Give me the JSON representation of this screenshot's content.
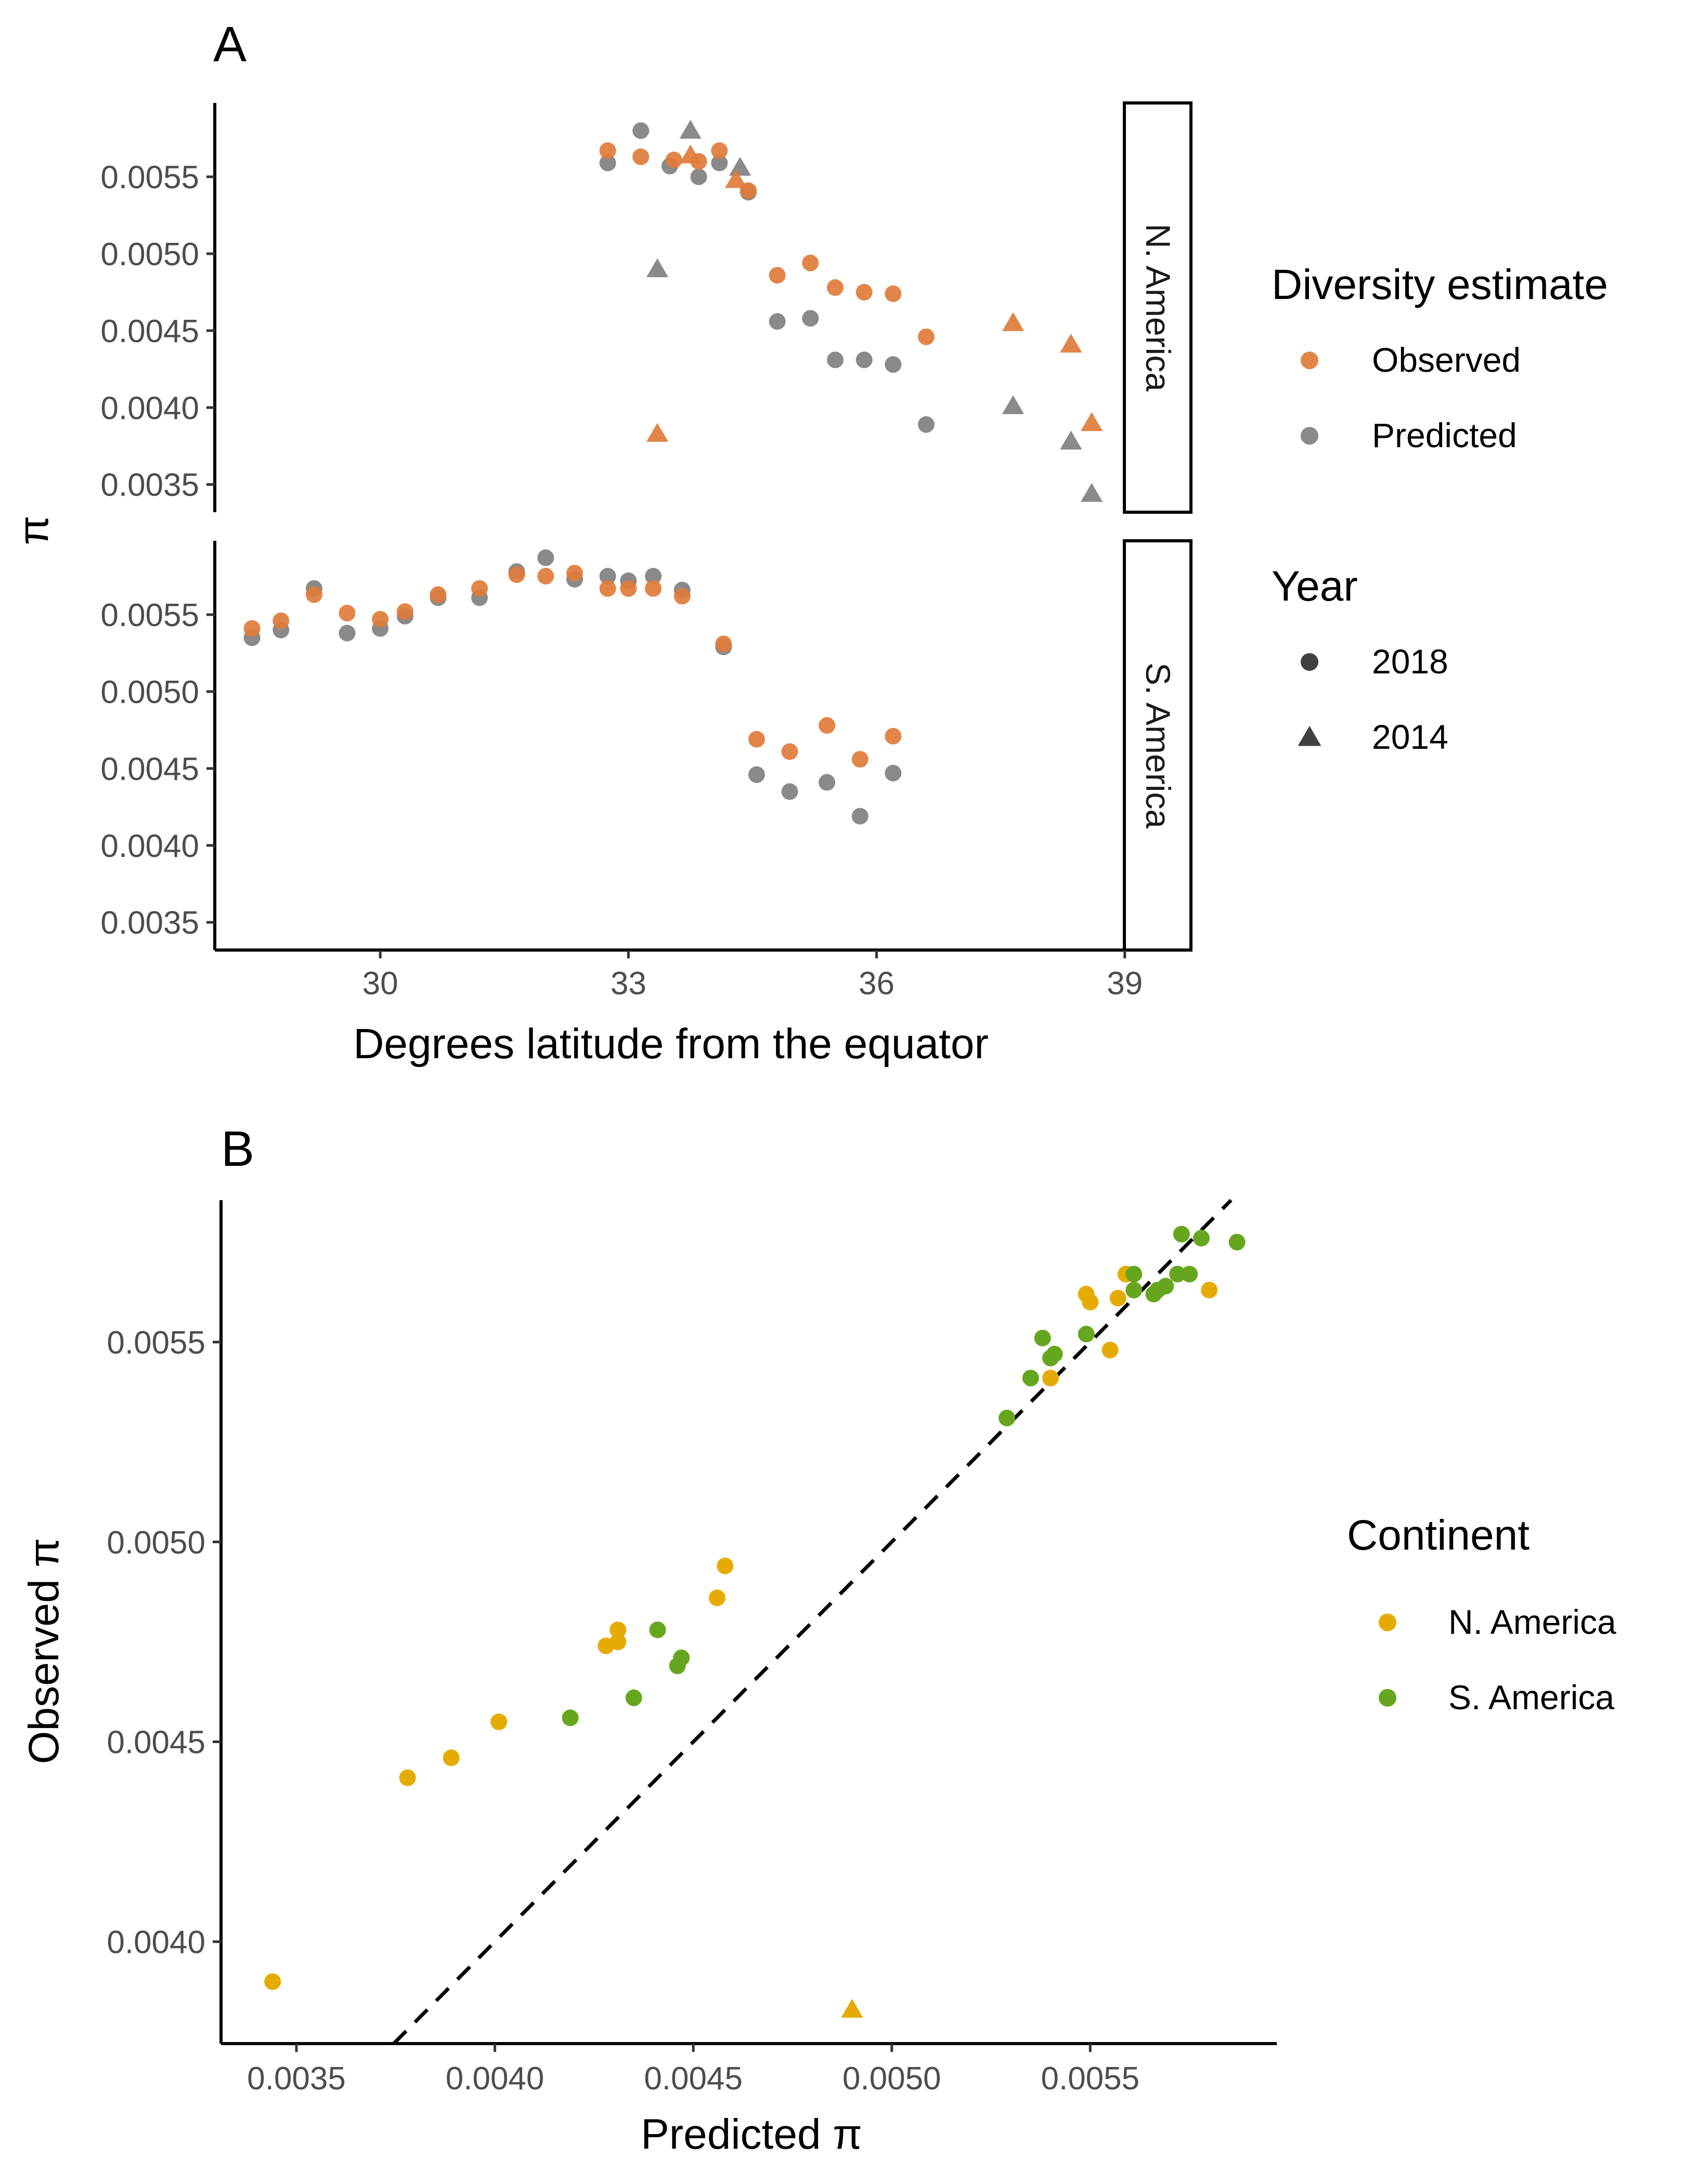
{
  "chart_data": [
    {
      "type": "scatter",
      "panel": "A",
      "xlabel": "Degrees latitude from the equator",
      "ylabel": "π",
      "xlim": [
        28,
        39.8
      ],
      "ylim": [
        0.00332,
        0.00598
      ],
      "xticks": [
        {
          "value": 30,
          "label": "30"
        },
        {
          "value": 33,
          "label": "33"
        },
        {
          "value": 36,
          "label": "36"
        },
        {
          "value": 39,
          "label": "39"
        }
      ],
      "yticks": [
        {
          "value": 0.0035,
          "label": "0.0035"
        },
        {
          "value": 0.004,
          "label": "0.0040"
        },
        {
          "value": 0.0045,
          "label": "0.0045"
        },
        {
          "value": 0.005,
          "label": "0.0050"
        },
        {
          "value": 0.0055,
          "label": "0.0055"
        }
      ],
      "grid": false,
      "legend_position": "right",
      "facets": [
        {
          "label": "N. America",
          "observed_2018": [
            [
              32.75,
              0.00567
            ],
            [
              33.15,
              0.00563
            ],
            [
              33.55,
              0.00561
            ],
            [
              33.85,
              0.0056
            ],
            [
              34.1,
              0.00567
            ],
            [
              34.45,
              0.00541
            ],
            [
              34.8,
              0.00486
            ],
            [
              35.2,
              0.00494
            ],
            [
              35.5,
              0.00478
            ],
            [
              35.85,
              0.00475
            ],
            [
              36.2,
              0.00474
            ],
            [
              36.6,
              0.00446
            ]
          ],
          "observed_2014": [
            [
              33.35,
              0.00383
            ],
            [
              33.75,
              0.00564
            ],
            [
              34.3,
              0.00548
            ],
            [
              37.65,
              0.00455
            ],
            [
              38.35,
              0.00441
            ],
            [
              38.6,
              0.0039
            ]
          ],
          "predicted_2018": [
            [
              32.75,
              0.00559
            ],
            [
              33.15,
              0.0058
            ],
            [
              33.5,
              0.00557
            ],
            [
              33.85,
              0.0055
            ],
            [
              34.1,
              0.00559
            ],
            [
              34.45,
              0.0054
            ],
            [
              34.8,
              0.00456
            ],
            [
              35.2,
              0.00458
            ],
            [
              35.5,
              0.00431
            ],
            [
              35.85,
              0.00431
            ],
            [
              36.2,
              0.00428
            ],
            [
              36.6,
              0.00389
            ]
          ],
          "predicted_2014": [
            [
              33.35,
              0.0049
            ],
            [
              33.75,
              0.0058
            ],
            [
              34.35,
              0.00556
            ],
            [
              37.65,
              0.00401
            ],
            [
              38.35,
              0.00378
            ],
            [
              38.6,
              0.00344
            ]
          ]
        },
        {
          "label": "S. America",
          "observed_2018": [
            [
              28.45,
              0.00541
            ],
            [
              28.8,
              0.00546
            ],
            [
              29.2,
              0.00563
            ],
            [
              29.6,
              0.00551
            ],
            [
              30.0,
              0.00547
            ],
            [
              30.3,
              0.00552
            ],
            [
              30.7,
              0.00563
            ],
            [
              31.2,
              0.00567
            ],
            [
              31.65,
              0.00576
            ],
            [
              32.0,
              0.00575
            ],
            [
              32.35,
              0.00577
            ],
            [
              32.75,
              0.00567
            ],
            [
              33.0,
              0.00567
            ],
            [
              33.3,
              0.00567
            ],
            [
              33.65,
              0.00562
            ],
            [
              34.15,
              0.00531
            ],
            [
              34.55,
              0.00469
            ],
            [
              34.95,
              0.00461
            ],
            [
              35.4,
              0.00478
            ],
            [
              35.8,
              0.00456
            ],
            [
              36.2,
              0.00471
            ]
          ],
          "predicted_2018": [
            [
              28.45,
              0.00535
            ],
            [
              28.8,
              0.0054
            ],
            [
              29.2,
              0.00567
            ],
            [
              29.6,
              0.00538
            ],
            [
              30.0,
              0.00541
            ],
            [
              30.3,
              0.00549
            ],
            [
              30.7,
              0.00561
            ],
            [
              31.2,
              0.00561
            ],
            [
              31.65,
              0.00578
            ],
            [
              32.0,
              0.00587
            ],
            [
              32.35,
              0.00573
            ],
            [
              32.75,
              0.00575
            ],
            [
              33.0,
              0.00572
            ],
            [
              33.3,
              0.00575
            ],
            [
              33.65,
              0.00566
            ],
            [
              34.15,
              0.00529
            ],
            [
              34.55,
              0.00446
            ],
            [
              34.95,
              0.00435
            ],
            [
              35.4,
              0.00441
            ],
            [
              35.8,
              0.00419
            ],
            [
              36.2,
              0.00447
            ]
          ]
        }
      ],
      "legends": [
        {
          "title": "Diversity estimate",
          "entries": [
            {
              "label": "Observed",
              "color": "#E07B39",
              "shape": "circle"
            },
            {
              "label": "Predicted",
              "color": "#808080",
              "shape": "circle"
            }
          ]
        },
        {
          "title": "Year",
          "entries": [
            {
              "label": "2018",
              "color": "#404040",
              "shape": "circle"
            },
            {
              "label": "2014",
              "color": "#404040",
              "shape": "triangle"
            }
          ]
        }
      ]
    },
    {
      "type": "scatter",
      "panel": "B",
      "xlabel": "Predicted π",
      "ylabel": "Observed π",
      "xlim": [
        0.00331,
        0.00597
      ],
      "ylim": [
        0.003745,
        0.005855
      ],
      "xticks": [
        {
          "value": 0.0035,
          "label": "0.0035"
        },
        {
          "value": 0.004,
          "label": "0.0040"
        },
        {
          "value": 0.0045,
          "label": "0.0045"
        },
        {
          "value": 0.005,
          "label": "0.0050"
        },
        {
          "value": 0.0055,
          "label": "0.0055"
        }
      ],
      "yticks": [
        {
          "value": 0.004,
          "label": "0.0040"
        },
        {
          "value": 0.0045,
          "label": "0.0045"
        },
        {
          "value": 0.005,
          "label": "0.0050"
        },
        {
          "value": 0.0055,
          "label": "0.0055"
        }
      ],
      "grid": false,
      "reference_line": {
        "style": "dashed",
        "color": "#000000",
        "slope": 1,
        "intercept": 0
      },
      "legend_position": "right",
      "series": [
        {
          "name": "N. America",
          "color": "#E6AB02",
          "points_2018": [
            [
              0.00559,
              0.00567
            ],
            [
              0.0058,
              0.00563
            ],
            [
              0.00557,
              0.00561
            ],
            [
              0.0055,
              0.0056
            ],
            [
              0.00559,
              0.00567
            ],
            [
              0.0054,
              0.00541
            ],
            [
              0.00456,
              0.00486
            ],
            [
              0.00458,
              0.00494
            ],
            [
              0.00431,
              0.00478
            ],
            [
              0.00431,
              0.00475
            ],
            [
              0.00428,
              0.00474
            ],
            [
              0.00389,
              0.00446
            ],
            [
              0.00401,
              0.00455
            ],
            [
              0.00378,
              0.00441
            ],
            [
              0.00344,
              0.0039
            ],
            [
              0.00555,
              0.00548
            ],
            [
              0.00549,
              0.00562
            ]
          ],
          "points_2014": [
            [
              0.0049,
              0.00383
            ]
          ]
        },
        {
          "name": "S. America",
          "color": "#66A61E",
          "points_2018": [
            [
              0.00535,
              0.00541
            ],
            [
              0.0054,
              0.00546
            ],
            [
              0.00567,
              0.00563
            ],
            [
              0.00538,
              0.00551
            ],
            [
              0.00541,
              0.00547
            ],
            [
              0.00549,
              0.00552
            ],
            [
              0.00561,
              0.00563
            ],
            [
              0.00561,
              0.00567
            ],
            [
              0.00578,
              0.00576
            ],
            [
              0.00587,
              0.00575
            ],
            [
              0.00573,
              0.00577
            ],
            [
              0.00575,
              0.00567
            ],
            [
              0.00572,
              0.00567
            ],
            [
              0.00569,
              0.00564
            ],
            [
              0.00566,
              0.00562
            ],
            [
              0.00529,
              0.00531
            ],
            [
              0.00446,
              0.00469
            ],
            [
              0.00435,
              0.00461
            ],
            [
              0.00441,
              0.00478
            ],
            [
              0.00419,
              0.00456
            ],
            [
              0.00447,
              0.00471
            ]
          ]
        }
      ],
      "legend": {
        "title": "Continent",
        "entries": [
          {
            "label": "N. America",
            "color": "#E6AB02",
            "shape": "circle"
          },
          {
            "label": "S. America",
            "color": "#66A61E",
            "shape": "circle"
          }
        ]
      }
    }
  ]
}
